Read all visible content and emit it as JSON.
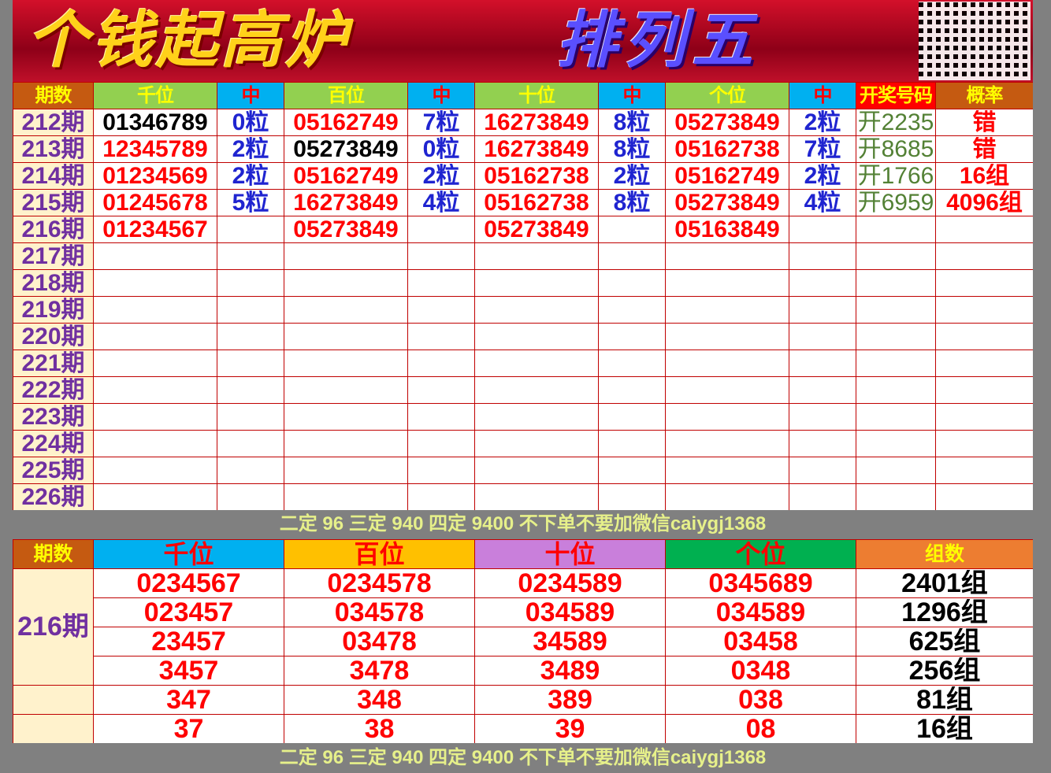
{
  "banner": {
    "title_left": "个钱起高炉",
    "title_right": "排列五",
    "qr": "qr-code"
  },
  "top": {
    "headers": [
      "期数",
      "千位",
      "中",
      "百位",
      "中",
      "十位",
      "中",
      "个位",
      "中",
      "开奖号码",
      "概率"
    ],
    "rows": [
      [
        "212期",
        "01346789",
        "0粒",
        "05162749",
        "7粒",
        "16273849",
        "8粒",
        "05273849",
        "2粒",
        "开2235",
        "错"
      ],
      [
        "213期",
        "12345789",
        "2粒",
        "05273849",
        "0粒",
        "16273849",
        "8粒",
        "05162738",
        "7粒",
        "开8685",
        "错"
      ],
      [
        "214期",
        "01234569",
        "2粒",
        "05162749",
        "2粒",
        "05162738",
        "2粒",
        "05162749",
        "2粒",
        "开1766",
        "16组"
      ],
      [
        "215期",
        "01245678",
        "5粒",
        "16273849",
        "4粒",
        "05162738",
        "8粒",
        "05273849",
        "4粒",
        "开6959",
        "4096组"
      ],
      [
        "216期",
        "01234567",
        "",
        "05273849",
        "",
        "05273849",
        "",
        "05163849",
        "",
        "",
        ""
      ],
      [
        "217期",
        "",
        "",
        "",
        "",
        "",
        "",
        "",
        "",
        "",
        ""
      ],
      [
        "218期",
        "",
        "",
        "",
        "",
        "",
        "",
        "",
        "",
        "",
        ""
      ],
      [
        "219期",
        "",
        "",
        "",
        "",
        "",
        "",
        "",
        "",
        "",
        ""
      ],
      [
        "220期",
        "",
        "",
        "",
        "",
        "",
        "",
        "",
        "",
        "",
        ""
      ],
      [
        "221期",
        "",
        "",
        "",
        "",
        "",
        "",
        "",
        "",
        "",
        ""
      ],
      [
        "222期",
        "",
        "",
        "",
        "",
        "",
        "",
        "",
        "",
        "",
        ""
      ],
      [
        "223期",
        "",
        "",
        "",
        "",
        "",
        "",
        "",
        "",
        "",
        ""
      ],
      [
        "224期",
        "",
        "",
        "",
        "",
        "",
        "",
        "",
        "",
        "",
        ""
      ],
      [
        "225期",
        "",
        "",
        "",
        "",
        "",
        "",
        "",
        "",
        "",
        ""
      ],
      [
        "226期",
        "",
        "",
        "",
        "",
        "",
        "",
        "",
        "",
        "",
        ""
      ]
    ]
  },
  "note": "二定 96 三定 940 四定 9400 不下单不要加微信caiygj1368",
  "bottom": {
    "headers": [
      "期数",
      "千位",
      "百位",
      "十位",
      "个位",
      "组数"
    ],
    "period": "216期",
    "rows": [
      [
        "0234567",
        "0234578",
        "0234589",
        "0345689",
        "2401组"
      ],
      [
        "023457",
        "034578",
        "034589",
        "034589",
        "1296组"
      ],
      [
        "23457",
        "03478",
        "34589",
        "03458",
        "625组"
      ],
      [
        "3457",
        "3478",
        "3489",
        "0348",
        "256组"
      ],
      [
        "347",
        "348",
        "389",
        "038",
        "81组"
      ],
      [
        "37",
        "38",
        "39",
        "08",
        "16组"
      ]
    ]
  },
  "colors": {
    "header_orange": "#c55a11",
    "header_green": "#92d050",
    "header_blue": "#00b0f0",
    "accent_red": "#ff0000",
    "period_purple": "#7030a0"
  }
}
